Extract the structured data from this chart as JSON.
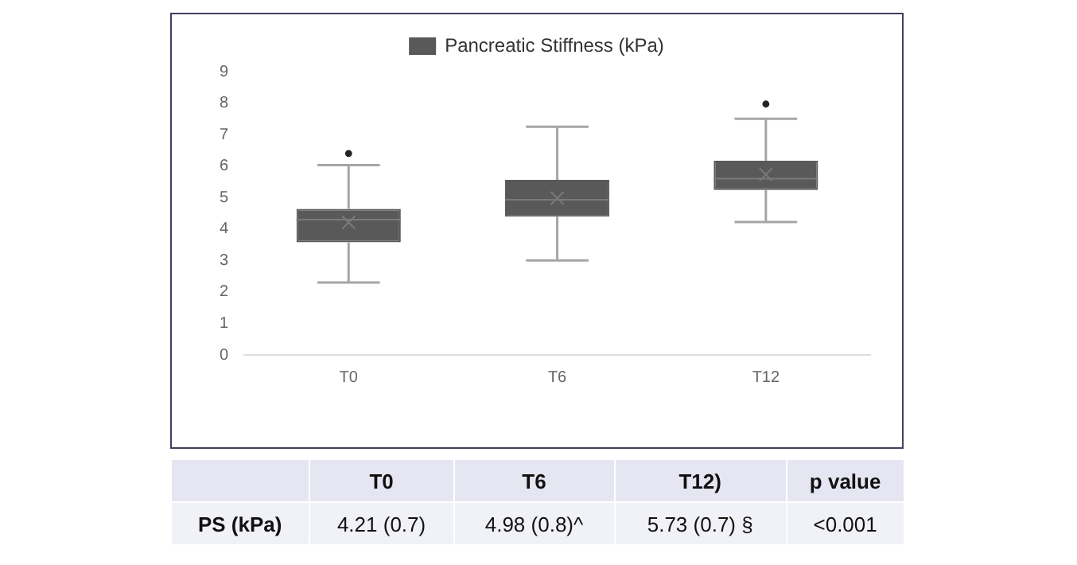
{
  "chart_data": {
    "type": "box",
    "categories": [
      "T0",
      "T6",
      "T12"
    ],
    "series": [
      {
        "name": "Pancreatic Stiffness (kPa)",
        "color": "#595959",
        "boxes": [
          {
            "low": 2.3,
            "q1": 3.58,
            "median": 4.3,
            "q3": 4.64,
            "high": 6.03,
            "mean": 4.21,
            "outliers": [
              6.4
            ]
          },
          {
            "low": 3.0,
            "q1": 4.39,
            "median": 4.93,
            "q3": 5.56,
            "high": 7.25,
            "mean": 4.98
          },
          {
            "low": 4.22,
            "q1": 5.24,
            "median": 5.6,
            "q3": 6.17,
            "high": 7.5,
            "mean": 5.73,
            "outliers": [
              7.97
            ]
          }
        ]
      }
    ],
    "ylim": [
      0,
      9
    ],
    "yticks": [
      0,
      1,
      2,
      3,
      4,
      5,
      6,
      7,
      8,
      9
    ],
    "grid": false,
    "legend": "top",
    "annotations": [
      "T0",
      "T6",
      "T12)",
      "p value",
      "PS (kPa)",
      "4.21 (0.7)",
      "4.98 (0.8)^",
      "5.73 (0.7) §",
      "<0.001"
    ]
  }
}
